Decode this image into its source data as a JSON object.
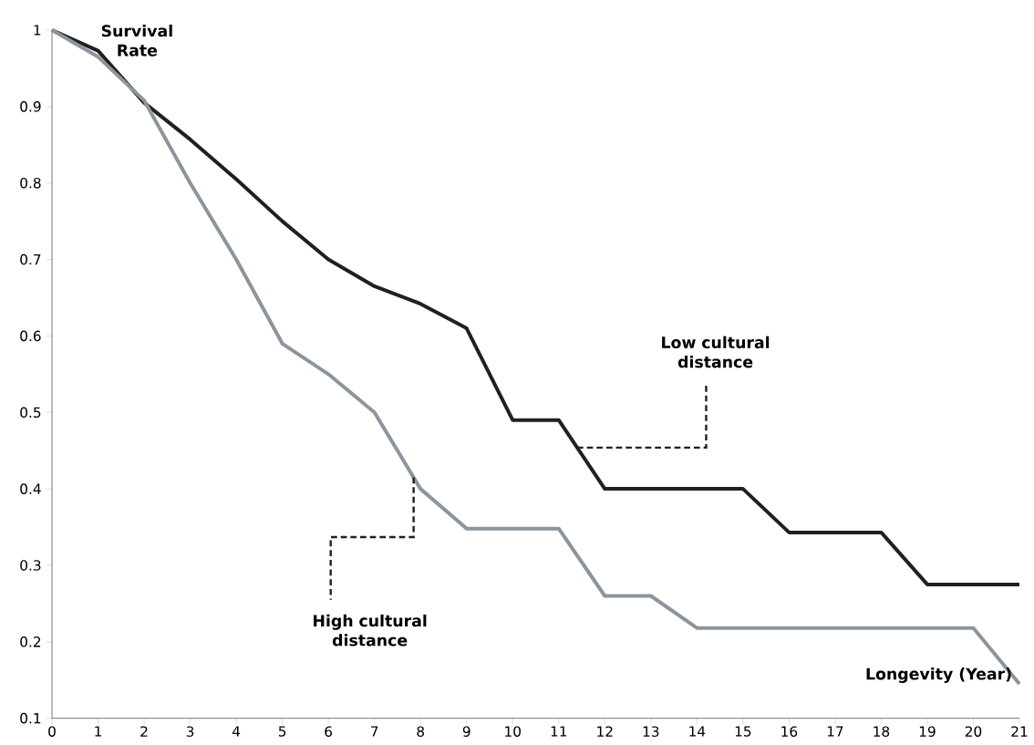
{
  "chart_data": {
    "type": "line",
    "xlabel": "Longevity (Year)",
    "ylabel": "Survival Rate",
    "x": [
      0,
      1,
      2,
      3,
      4,
      5,
      6,
      7,
      8,
      9,
      10,
      11,
      12,
      13,
      14,
      15,
      16,
      17,
      18,
      19,
      20,
      21
    ],
    "series": [
      {
        "color": "#231f20",
        "values": [
          1.0,
          0.973,
          0.905,
          0.857,
          0.805,
          0.75,
          0.7,
          0.665,
          0.642,
          0.61,
          0.49,
          0.49,
          0.4,
          0.4,
          0.4,
          0.4,
          0.343,
          0.343,
          0.343,
          0.275,
          0.275,
          0.275
        ]
      },
      {
        "color": "#8c959d",
        "values": [
          1.0,
          0.965,
          0.908,
          0.8,
          0.7,
          0.59,
          0.55,
          0.5,
          0.4,
          0.348,
          0.348,
          0.348,
          0.26,
          0.26,
          0.218,
          0.218,
          0.218,
          0.218,
          0.218,
          0.218,
          0.218,
          0.145
        ]
      }
    ],
    "annotations": [
      {
        "text": "Low cultural distance",
        "x": 11.4,
        "y": 0.454
      },
      {
        "text": "High cultural distance",
        "x": 7.85,
        "y": 0.415
      }
    ],
    "xlim": [
      0,
      21
    ],
    "ylim": [
      0.1,
      1
    ],
    "xticks": [
      0,
      1,
      2,
      3,
      4,
      5,
      6,
      7,
      8,
      9,
      10,
      11,
      12,
      13,
      14,
      15,
      16,
      17,
      18,
      19,
      20,
      21
    ],
    "yticks": [
      0.1,
      0.2,
      0.3,
      0.4,
      0.5,
      0.6,
      0.7,
      0.8,
      0.9,
      1
    ],
    "grid": false,
    "line_style": "solid"
  }
}
